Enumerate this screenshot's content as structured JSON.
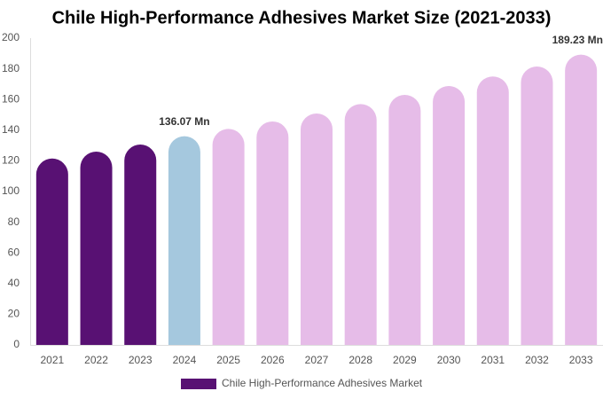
{
  "chart_data": {
    "type": "bar",
    "title": "Chile High-Performance Adhesives Market Size (2021-2033)",
    "categories": [
      "2021",
      "2022",
      "2023",
      "2024",
      "2025",
      "2026",
      "2027",
      "2028",
      "2029",
      "2030",
      "2031",
      "2032",
      "2033"
    ],
    "series": [
      {
        "name": "Chile High-Performance Adhesives Market",
        "color": "#581173",
        "values": [
          121.5,
          126,
          130.6,
          136.07,
          140.8,
          145.7,
          150.9,
          157,
          163,
          168.8,
          175,
          181.5,
          189.23
        ],
        "value_labels": [
          null,
          null,
          null,
          "136.07 Mn",
          null,
          null,
          null,
          null,
          null,
          null,
          null,
          null,
          "189.23 Mn"
        ],
        "colors": [
          "#581173",
          "#581173",
          "#581173",
          "#a5c8de",
          "#e6bce8",
          "#e6bce8",
          "#e6bce8",
          "#e6bce8",
          "#e6bce8",
          "#e6bce8",
          "#e6bce8",
          "#e6bce8",
          "#e6bce8"
        ]
      }
    ],
    "ylim": [
      0,
      200
    ],
    "yticks": [
      0,
      20,
      40,
      60,
      80,
      100,
      120,
      140,
      160,
      180,
      200
    ],
    "grid": false
  }
}
